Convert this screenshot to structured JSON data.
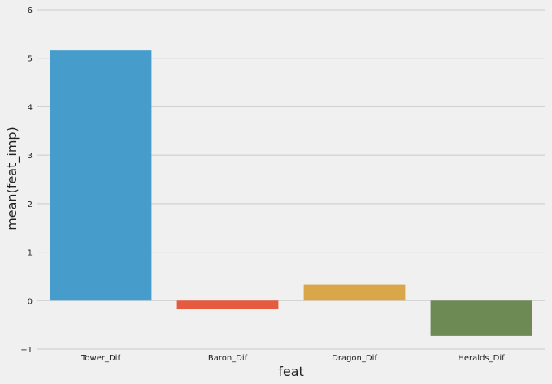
{
  "chart_data": {
    "type": "bar",
    "categories": [
      "Tower_Dif",
      "Baron_Dif",
      "Dragon_Dif",
      "Heralds_Dif"
    ],
    "values": [
      5.16,
      -0.18,
      0.33,
      -0.73
    ],
    "colors": [
      "#469dcb",
      "#e55b3f",
      "#d9a74a",
      "#6d8a55"
    ],
    "title": "",
    "xlabel": "feat",
    "ylabel": "mean(feat_imp)",
    "ylim": [
      -1,
      6
    ],
    "yticks": [
      -1,
      0,
      1,
      2,
      3,
      4,
      5,
      6
    ],
    "grid": true,
    "background": "#f0f0f0",
    "grid_color": "#cbcbcb"
  }
}
